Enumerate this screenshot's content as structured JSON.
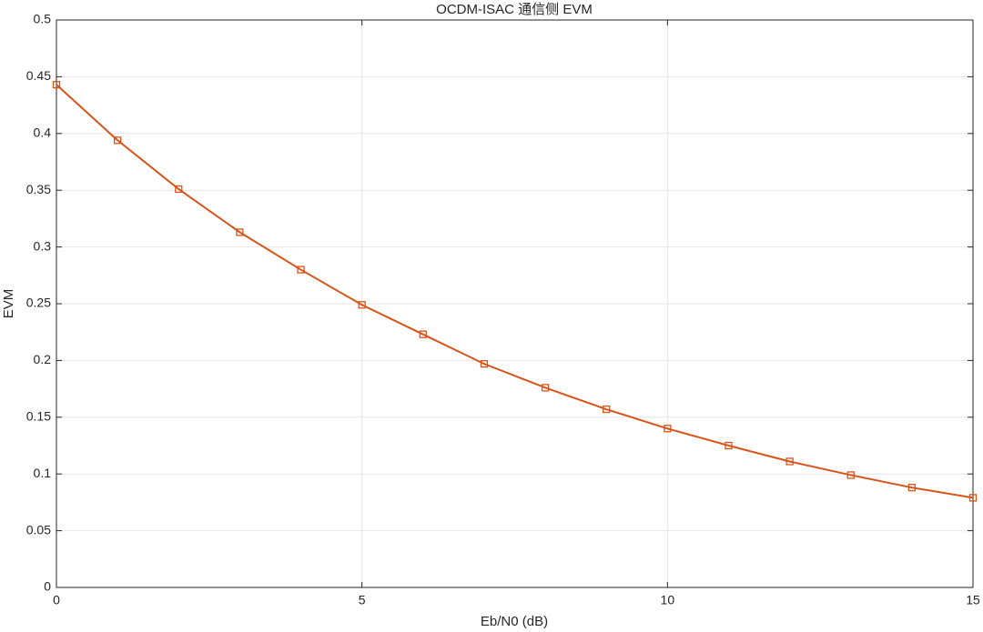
{
  "chart_data": {
    "type": "line",
    "title": "OCDM-ISAC 通信侧 EVM",
    "xlabel": "Eb/N0 (dB)",
    "ylabel": "EVM",
    "x": [
      0,
      1,
      2,
      3,
      4,
      5,
      6,
      7,
      8,
      9,
      10,
      11,
      12,
      13,
      14,
      15
    ],
    "series": [
      {
        "name": "EVM",
        "color": "#d95319",
        "values": [
          0.443,
          0.394,
          0.351,
          0.313,
          0.28,
          0.249,
          0.223,
          0.197,
          0.176,
          0.157,
          0.14,
          0.125,
          0.111,
          0.099,
          0.088,
          0.079
        ]
      }
    ],
    "xlim": [
      0,
      15
    ],
    "xticks": [
      0,
      5,
      10,
      15
    ],
    "ylim": [
      0,
      0.5
    ],
    "yticks": [
      0,
      0.05,
      0.1,
      0.15,
      0.2,
      0.25,
      0.3,
      0.35,
      0.4,
      0.45,
      0.5
    ],
    "grid": true,
    "marker": "square"
  }
}
